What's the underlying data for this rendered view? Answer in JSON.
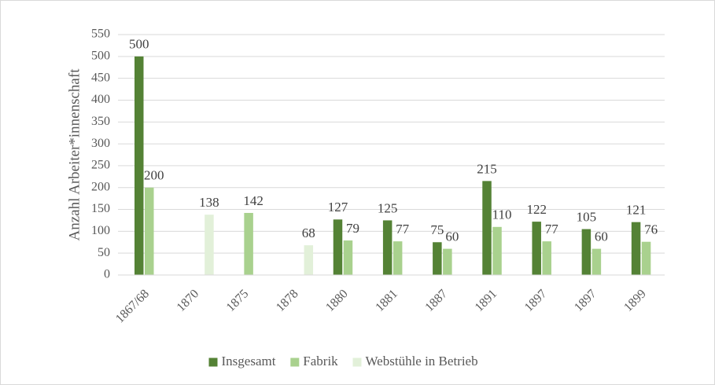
{
  "chart_data": {
    "type": "bar",
    "y_label": "Anzahl Arbeiter*innenschaft",
    "categories": [
      "1867/68",
      "1870",
      "1875",
      "1878",
      "1880",
      "1881",
      "1887",
      "1891",
      "1897",
      "1897",
      "1899"
    ],
    "series": [
      {
        "name": "Insgesamt",
        "color": "#548235",
        "values": [
          500,
          null,
          null,
          null,
          127,
          125,
          75,
          215,
          122,
          105,
          121
        ]
      },
      {
        "name": "Fabrik",
        "color": "#a9d18e",
        "values": [
          200,
          null,
          142,
          null,
          79,
          77,
          60,
          110,
          77,
          60,
          76
        ]
      },
      {
        "name": "Webstühle in Betrieb",
        "color": "#e2f0d9",
        "values": [
          null,
          138,
          null,
          68,
          null,
          null,
          null,
          null,
          null,
          null,
          null
        ]
      }
    ],
    "ylim": [
      0,
      550
    ],
    "yticks": [
      0,
      50,
      100,
      150,
      200,
      250,
      300,
      350,
      400,
      450,
      500,
      550
    ],
    "grid": true,
    "legend": "bottom"
  }
}
